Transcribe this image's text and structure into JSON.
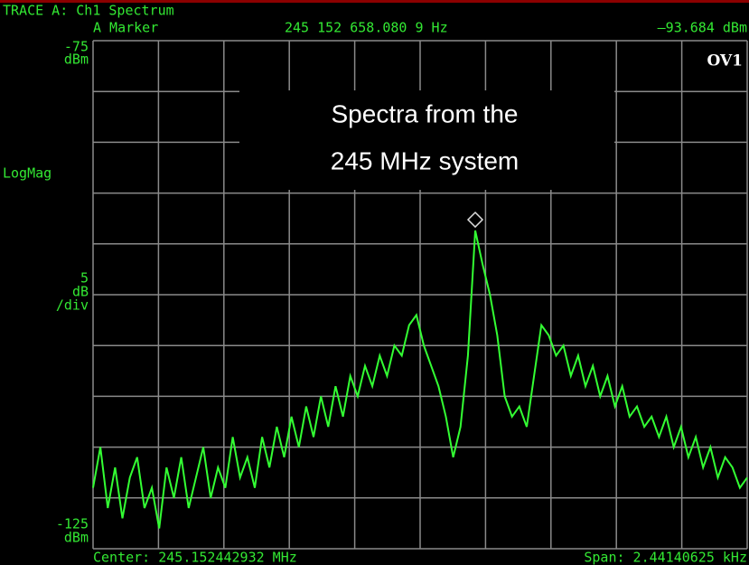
{
  "chart_data": {
    "type": "line",
    "header": "TRACE A: Ch1 Spectrum",
    "marker": {
      "label": "A Marker",
      "frequency": "245 152 658.080 9 Hz",
      "readout": "–93.684 dBm",
      "index": 52
    },
    "overload": "OV1",
    "y_unit": "dBm",
    "format": "LogMag",
    "scale_per_div": 5,
    "scale_unit": "dB",
    "scale_suffix": "/div",
    "center": "Center: 245.152442932 MHz",
    "span": "Span: 2.44140625 kHz",
    "annotation": [
      "Spectra from the",
      "245 MHz system"
    ],
    "ylim": [
      -125,
      -75
    ],
    "yticks": [
      -75,
      -125
    ],
    "grid": true,
    "color": "#33ff33",
    "values": [
      -119,
      -115,
      -121,
      -117,
      -122,
      -118,
      -116,
      -121,
      -119,
      -123,
      -117,
      -120,
      -116,
      -121,
      -118,
      -115,
      -120,
      -117,
      -119,
      -114,
      -118,
      -116,
      -119,
      -114,
      -117,
      -113,
      -116,
      -112,
      -115,
      -111,
      -114,
      -110,
      -113,
      -109,
      -112,
      -108,
      -110,
      -107,
      -109,
      -106,
      -108,
      -105,
      -106,
      -103,
      -102,
      -105,
      -107,
      -109,
      -112,
      -116,
      -113,
      -106,
      -93.684,
      -97,
      -100,
      -104,
      -110,
      -112,
      -111,
      -113,
      -108,
      -103,
      -104,
      -106,
      -105,
      -108,
      -106,
      -109,
      -107,
      -110,
      -108,
      -111,
      -109,
      -112,
      -111,
      -113,
      -112,
      -114,
      -112,
      -115,
      -113,
      -116,
      -114,
      -117,
      -115,
      -118,
      -116,
      -117,
      -119,
      -118
    ]
  }
}
